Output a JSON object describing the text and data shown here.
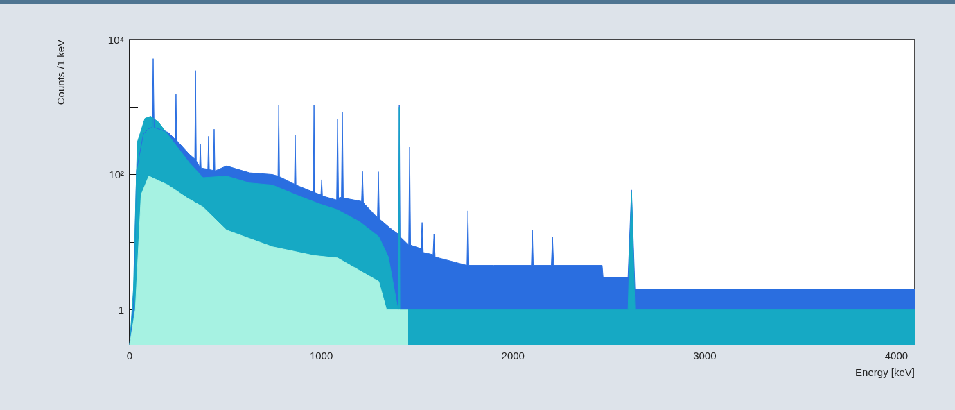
{
  "chart_data": {
    "type": "area",
    "xlabel": "Energy [keV]",
    "ylabel": "Counts /1 keV",
    "log": "y",
    "grid": false,
    "marker": "none",
    "line_style": "solid",
    "xlim": [
      0,
      4096
    ],
    "xticks": [
      0,
      1000,
      2000,
      3000,
      4000
    ],
    "ylim": [
      0.3,
      10000
    ],
    "yticks": [
      1,
      {
        "value": 10,
        "label": null
      },
      {
        "value": 100,
        "label": "10²"
      },
      {
        "value": 1000,
        "label": null
      },
      {
        "value": 10000,
        "label": "10⁴"
      }
    ],
    "series": [
      {
        "color": "#2a6ee0",
        "x": [
          0,
          20,
          36,
          72,
          100,
          118,
          123,
          128,
          203,
          238,
          242,
          246,
          311,
          340,
          344,
          348,
          365,
          369,
          373,
          408,
          412,
          416,
          437,
          441,
          445,
          506,
          626,
          745,
          774,
          778,
          782,
          860,
          864,
          868,
          958,
          962,
          966,
          998,
          1002,
          1006,
          1080,
          1085,
          1090,
          1105,
          1110,
          1115,
          1210,
          1215,
          1220,
          1293,
          1298,
          1303,
          1360,
          1403,
          1407,
          1411,
          1456,
          1461,
          1466,
          1520,
          1526,
          1532,
          1583,
          1588,
          1594,
          1700,
          1760,
          1765,
          1770,
          1900,
          2096,
          2101,
          2106,
          2200,
          2206,
          2212,
          2465,
          2470,
          2600,
          2618,
          2636,
          4096
        ],
        "values": [
          0.3,
          1,
          114,
          400,
          480,
          500,
          5200,
          500,
          420,
          330,
          1540,
          320,
          200,
          170,
          3470,
          160,
          130,
          285,
          125,
          120,
          370,
          118,
          115,
          470,
          113,
          134,
          106,
          100,
          95,
          1070,
          93,
          72,
          390,
          70,
          55,
          1070,
          54,
          50,
          84,
          48,
          42,
          670,
          45,
          46,
          850,
          45,
          40,
          111,
          38,
          23,
          110,
          22,
          16,
          13,
          1070,
          12,
          9,
          255,
          9,
          8,
          19.5,
          7,
          6.5,
          13,
          6,
          5,
          4.5,
          29,
          4.5,
          4.5,
          4.5,
          15,
          4.5,
          4.5,
          12,
          4.5,
          4.5,
          3,
          3,
          59,
          2,
          2
        ]
      },
      {
        "color": "#16a9c4",
        "x": [
          0,
          20,
          40,
          80,
          110,
          150,
          203,
          311,
          383,
          506,
          626,
          745,
          868,
          987,
          1085,
          1200,
          1300,
          1350,
          1400,
          1404,
          1407,
          1410,
          1461,
          1500,
          2600,
          2618,
          2636,
          4096
        ],
        "values": [
          0.3,
          2,
          300,
          680,
          730,
          600,
          380,
          150,
          90,
          95,
          75,
          70,
          50,
          37,
          30,
          20,
          12,
          6,
          1,
          1,
          1000,
          1,
          1,
          1,
          1,
          55,
          1,
          1
        ]
      },
      {
        "color": "#a6f2e2",
        "x": [
          0,
          30,
          60,
          100,
          200,
          300,
          383,
          506,
          745,
          962,
          1085,
          1300,
          1340,
          1450
        ],
        "values": [
          0.3,
          1,
          50,
          95,
          70,
          45,
          33,
          15,
          8.5,
          6.3,
          5.8,
          2.6,
          1,
          1
        ]
      }
    ]
  }
}
